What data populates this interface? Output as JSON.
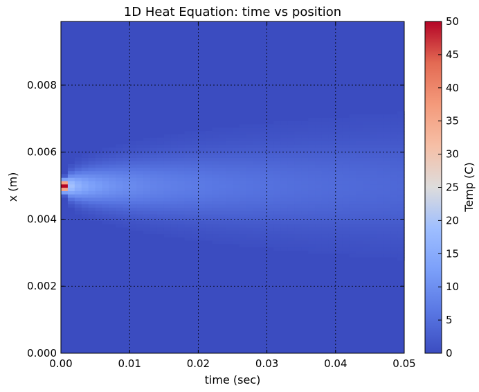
{
  "chart_data": {
    "type": "heatmap",
    "title": "1D Heat Equation: time vs position",
    "xlabel": "time (sec)",
    "ylabel": "x (m)",
    "xlim": [
      0.0,
      0.05
    ],
    "ylim": [
      0.0,
      0.0099
    ],
    "x_ticks": [
      "0.00",
      "0.01",
      "0.02",
      "0.03",
      "0.04",
      "0.05"
    ],
    "y_ticks": [
      "0.000",
      "0.002",
      "0.004",
      "0.006",
      "0.008"
    ],
    "grid": true,
    "colormap": "coolwarm",
    "colorbar": {
      "label": "Temp (C)",
      "min": 0,
      "max": 50,
      "ticks": [
        "0",
        "5",
        "10",
        "15",
        "20",
        "25",
        "30",
        "35",
        "40",
        "45",
        "50"
      ]
    },
    "description": "Initial temperature spike at x = 0.005 m diffuses over time; peak near 50 C at t = 0 decaying to about 4 C by t = 0.05 s",
    "heat_source": {
      "x_center": 0.005,
      "initial_peak_temp": 50,
      "final_peak_temp": 4
    }
  }
}
